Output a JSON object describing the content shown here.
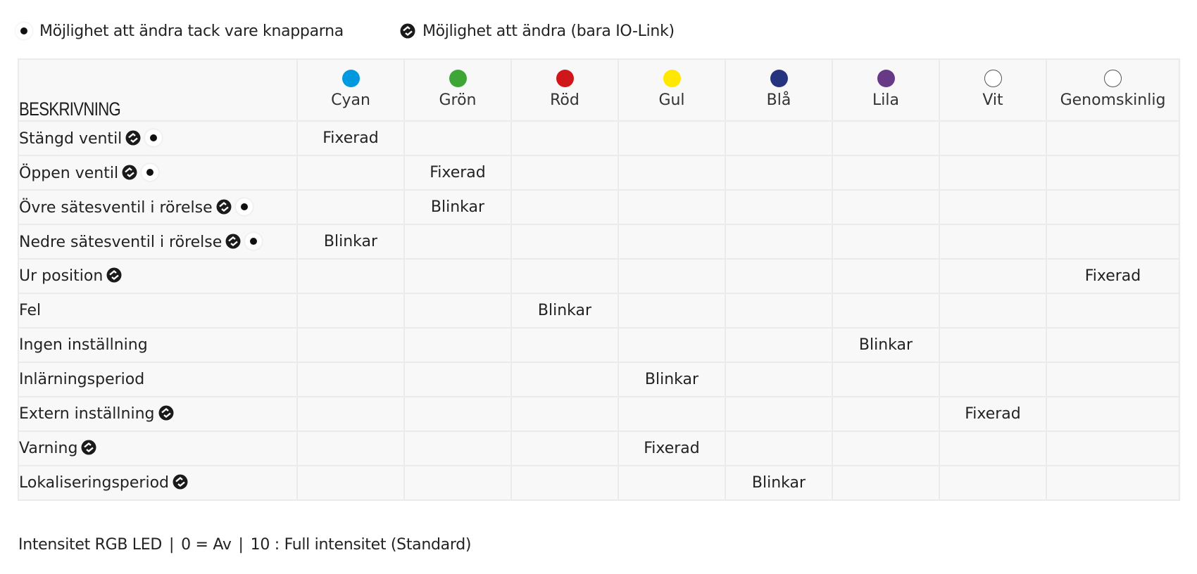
{
  "legend": {
    "buttons": {
      "icon": "button-dot-icon",
      "label": "Möjlighet att ändra tack vare knapparna"
    },
    "io_link": {
      "icon": "io-link-icon",
      "label": "Möjlighet att ändra (bara IO-Link)"
    }
  },
  "table": {
    "header": "BESKRIVNING",
    "colors": [
      {
        "label": "Cyan",
        "hex": "#0099e0",
        "outline": false
      },
      {
        "label": "Grön",
        "hex": "#3ea637",
        "outline": false
      },
      {
        "label": "Röd",
        "hex": "#cf161a",
        "outline": false
      },
      {
        "label": "Gul",
        "hex": "#ffe800",
        "outline": false
      },
      {
        "label": "Blå",
        "hex": "#26337f",
        "outline": false
      },
      {
        "label": "Lila",
        "hex": "#683a86",
        "outline": false
      },
      {
        "label": "Vit",
        "hex": "#ffffff",
        "outline": true
      },
      {
        "label": "Genomskinlig",
        "hex": "#ffffff",
        "outline": true
      }
    ],
    "rows": [
      {
        "desc": "Stängd ventil",
        "io_link": true,
        "buttons": true,
        "values": [
          "Fixerad",
          "",
          "",
          "",
          "",
          "",
          "",
          ""
        ]
      },
      {
        "desc": "Öppen ventil",
        "io_link": true,
        "buttons": true,
        "values": [
          "",
          "Fixerad",
          "",
          "",
          "",
          "",
          "",
          ""
        ]
      },
      {
        "desc": "Övre sätesventil i rörelse",
        "io_link": true,
        "buttons": true,
        "values": [
          "",
          "Blinkar",
          "",
          "",
          "",
          "",
          "",
          ""
        ]
      },
      {
        "desc": "Nedre sätesventil i rörelse",
        "io_link": true,
        "buttons": true,
        "values": [
          "Blinkar",
          "",
          "",
          "",
          "",
          "",
          "",
          ""
        ]
      },
      {
        "desc": "Ur position",
        "io_link": true,
        "buttons": false,
        "values": [
          "",
          "",
          "",
          "",
          "",
          "",
          "",
          "Fixerad"
        ]
      },
      {
        "desc": "Fel",
        "io_link": false,
        "buttons": false,
        "values": [
          "",
          "",
          "Blinkar",
          "",
          "",
          "",
          "",
          ""
        ]
      },
      {
        "desc": "Ingen inställning",
        "io_link": false,
        "buttons": false,
        "values": [
          "",
          "",
          "",
          "",
          "",
          "Blinkar",
          "",
          ""
        ]
      },
      {
        "desc": "Inlärningsperiod",
        "io_link": false,
        "buttons": false,
        "values": [
          "",
          "",
          "",
          "Blinkar",
          "",
          "",
          "",
          ""
        ]
      },
      {
        "desc": "Extern inställning",
        "io_link": true,
        "buttons": false,
        "values": [
          "",
          "",
          "",
          "",
          "",
          "",
          "Fixerad",
          ""
        ]
      },
      {
        "desc": "Varning",
        "io_link": true,
        "buttons": false,
        "values": [
          "",
          "",
          "",
          "Fixerad",
          "",
          "",
          "",
          ""
        ]
      },
      {
        "desc": "Lokaliseringsperiod",
        "io_link": true,
        "buttons": false,
        "values": [
          "",
          "",
          "",
          "",
          "Blinkar",
          "",
          "",
          ""
        ]
      }
    ]
  },
  "footer": {
    "parts": [
      "Intensitet RGB LED",
      "0 = Av",
      "10 : Full intensitet (Standard)"
    ],
    "separator": "|"
  }
}
